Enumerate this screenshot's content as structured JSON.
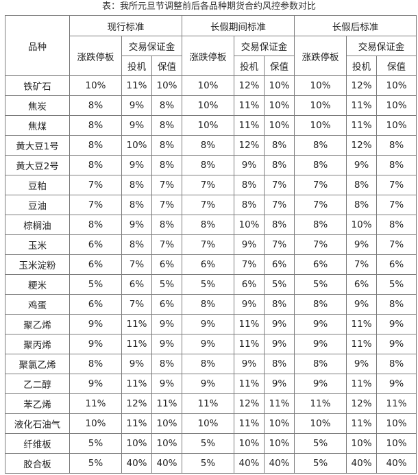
{
  "caption": "表：我所元旦节调整前后各品种期货合约风控参数对比",
  "header": {
    "variety": "品种",
    "groups": [
      "现行标准",
      "长假期间标准",
      "长假后标准"
    ],
    "limit": "涨跌停板",
    "margin": "交易保证金",
    "speculation": "投机",
    "hedging": "保值"
  },
  "rows": [
    {
      "name": "铁矿石",
      "cur": [
        "10%",
        "11%",
        "10%"
      ],
      "hol": [
        "10%",
        "12%",
        "10%"
      ],
      "post": [
        "10%",
        "12%",
        "10%"
      ]
    },
    {
      "name": "焦炭",
      "cur": [
        "8%",
        "9%",
        "8%"
      ],
      "hol": [
        "10%",
        "11%",
        "10%"
      ],
      "post": [
        "10%",
        "11%",
        "10%"
      ]
    },
    {
      "name": "焦煤",
      "cur": [
        "8%",
        "9%",
        "8%"
      ],
      "hol": [
        "10%",
        "11%",
        "10%"
      ],
      "post": [
        "10%",
        "11%",
        "10%"
      ]
    },
    {
      "name": "黄大豆1号",
      "cur": [
        "8%",
        "10%",
        "8%"
      ],
      "hol": [
        "8%",
        "12%",
        "8%"
      ],
      "post": [
        "8%",
        "12%",
        "8%"
      ]
    },
    {
      "name": "黄大豆2号",
      "cur": [
        "8%",
        "9%",
        "8%"
      ],
      "hol": [
        "8%",
        "9%",
        "8%"
      ],
      "post": [
        "8%",
        "9%",
        "8%"
      ]
    },
    {
      "name": "豆粕",
      "cur": [
        "7%",
        "8%",
        "7%"
      ],
      "hol": [
        "7%",
        "8%",
        "7%"
      ],
      "post": [
        "7%",
        "8%",
        "7%"
      ]
    },
    {
      "name": "豆油",
      "cur": [
        "7%",
        "8%",
        "7%"
      ],
      "hol": [
        "7%",
        "8%",
        "7%"
      ],
      "post": [
        "7%",
        "8%",
        "7%"
      ]
    },
    {
      "name": "棕榈油",
      "cur": [
        "8%",
        "9%",
        "8%"
      ],
      "hol": [
        "8%",
        "10%",
        "8%"
      ],
      "post": [
        "8%",
        "10%",
        "8%"
      ]
    },
    {
      "name": "玉米",
      "cur": [
        "6%",
        "8%",
        "7%"
      ],
      "hol": [
        "7%",
        "9%",
        "7%"
      ],
      "post": [
        "7%",
        "9%",
        "7%"
      ]
    },
    {
      "name": "玉米淀粉",
      "cur": [
        "6%",
        "7%",
        "6%"
      ],
      "hol": [
        "6%",
        "7%",
        "6%"
      ],
      "post": [
        "6%",
        "7%",
        "6%"
      ]
    },
    {
      "name": "粳米",
      "cur": [
        "5%",
        "6%",
        "5%"
      ],
      "hol": [
        "5%",
        "6%",
        "5%"
      ],
      "post": [
        "5%",
        "6%",
        "5%"
      ]
    },
    {
      "name": "鸡蛋",
      "cur": [
        "6%",
        "7%",
        "6%"
      ],
      "hol": [
        "8%",
        "9%",
        "8%"
      ],
      "post": [
        "8%",
        "9%",
        "8%"
      ]
    },
    {
      "name": "聚乙烯",
      "cur": [
        "9%",
        "11%",
        "9%"
      ],
      "hol": [
        "9%",
        "11%",
        "9%"
      ],
      "post": [
        "9%",
        "11%",
        "9%"
      ]
    },
    {
      "name": "聚丙烯",
      "cur": [
        "9%",
        "11%",
        "9%"
      ],
      "hol": [
        "9%",
        "11%",
        "9%"
      ],
      "post": [
        "9%",
        "11%",
        "9%"
      ]
    },
    {
      "name": "聚氯乙烯",
      "cur": [
        "8%",
        "9%",
        "8%"
      ],
      "hol": [
        "8%",
        "9%",
        "8%"
      ],
      "post": [
        "8%",
        "9%",
        "8%"
      ]
    },
    {
      "name": "乙二醇",
      "cur": [
        "9%",
        "11%",
        "9%"
      ],
      "hol": [
        "9%",
        "11%",
        "9%"
      ],
      "post": [
        "9%",
        "11%",
        "9%"
      ]
    },
    {
      "name": "苯乙烯",
      "cur": [
        "11%",
        "12%",
        "11%"
      ],
      "hol": [
        "11%",
        "12%",
        "11%"
      ],
      "post": [
        "11%",
        "12%",
        "11%"
      ]
    },
    {
      "name": "液化石油气",
      "cur": [
        "10%",
        "11%",
        "10%"
      ],
      "hol": [
        "10%",
        "11%",
        "10%"
      ],
      "post": [
        "10%",
        "11%",
        "10%"
      ]
    },
    {
      "name": "纤维板",
      "cur": [
        "5%",
        "10%",
        "10%"
      ],
      "hol": [
        "5%",
        "10%",
        "10%"
      ],
      "post": [
        "5%",
        "10%",
        "10%"
      ]
    },
    {
      "name": "胶合板",
      "cur": [
        "5%",
        "40%",
        "40%"
      ],
      "hol": [
        "5%",
        "40%",
        "40%"
      ],
      "post": [
        "5%",
        "40%",
        "40%"
      ]
    }
  ]
}
